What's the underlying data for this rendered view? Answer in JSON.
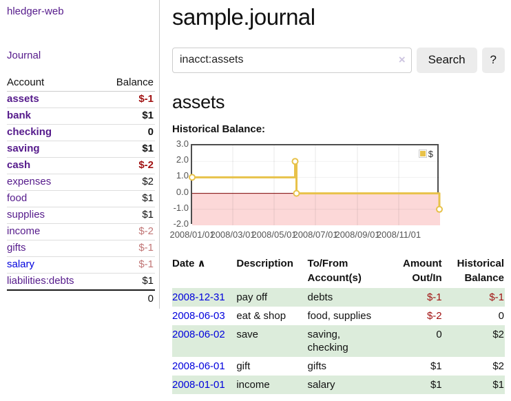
{
  "app": {
    "title": "hledger-web",
    "nav_journal": "Journal"
  },
  "sidebar": {
    "headers": {
      "account": "Account",
      "balance": "Balance"
    },
    "accounts": [
      {
        "name": "assets",
        "depth": 1,
        "bold": true,
        "balance": "$-1",
        "balance_style": "negative"
      },
      {
        "name": "bank",
        "depth": 2,
        "bold": true,
        "balance": "$1",
        "balance_style": "normal"
      },
      {
        "name": "checking",
        "depth": 3,
        "bold": true,
        "balance": "0",
        "balance_style": "normal"
      },
      {
        "name": "saving",
        "depth": 3,
        "bold": true,
        "balance": "$1",
        "balance_style": "normal"
      },
      {
        "name": "cash",
        "depth": 2,
        "bold": true,
        "balance": "$-2",
        "balance_style": "negative"
      },
      {
        "name": "expenses",
        "depth": 1,
        "bold": false,
        "balance": "$2",
        "balance_style": "normal"
      },
      {
        "name": "food",
        "depth": 2,
        "bold": false,
        "balance": "$1",
        "balance_style": "normal"
      },
      {
        "name": "supplies",
        "depth": 2,
        "bold": false,
        "balance": "$1",
        "balance_style": "normal"
      },
      {
        "name": "income",
        "depth": 1,
        "bold": false,
        "balance": "$-2",
        "balance_style": "negative-muted"
      },
      {
        "name": "gifts",
        "depth": 2,
        "bold": false,
        "balance": "$-1",
        "balance_style": "negative-muted"
      },
      {
        "name": "salary",
        "depth": 2,
        "bold": false,
        "balance": "$-1",
        "balance_style": "negative-muted",
        "link_blue": true
      },
      {
        "name": "liabilities:debts",
        "depth": 1,
        "bold": false,
        "balance": "$1",
        "balance_style": "normal"
      }
    ],
    "total": "0"
  },
  "main": {
    "title": "sample.journal",
    "search": {
      "value": "inacct:assets",
      "clear_icon": "×",
      "search_button": "Search",
      "help_button": "?"
    },
    "account_heading": "assets",
    "chart_label": "Historical Balance:"
  },
  "chart_data": {
    "type": "line",
    "subtype": "step",
    "title": "Historical Balance:",
    "legend": [
      {
        "name": "$",
        "color": "#e8c24a"
      }
    ],
    "legend_position": "top-right",
    "grid": true,
    "ylim": [
      -2.0,
      3.0
    ],
    "ytick_labels": [
      "3.0",
      "2.0",
      "1.0",
      "0.0",
      "-1.0",
      "-2.0"
    ],
    "ytick_values": [
      3,
      2,
      1,
      0,
      -1,
      -2
    ],
    "x_domain": [
      "2008-01-01",
      "2009-01-01"
    ],
    "xtick_labels": [
      "2008/01/01",
      "2008/03/01",
      "2008/05/01",
      "2008/07/01",
      "2008/09/01",
      "2008/11/01"
    ],
    "series": [
      {
        "name": "$",
        "vertices": [
          [
            "2008-01-01",
            1
          ],
          [
            "2008-06-01",
            1
          ],
          [
            "2008-06-01",
            2
          ],
          [
            "2008-06-03",
            2
          ],
          [
            "2008-06-03",
            0
          ],
          [
            "2008-12-31",
            0
          ],
          [
            "2008-12-31",
            -1
          ]
        ],
        "markers": [
          [
            "2008-01-01",
            1
          ],
          [
            "2008-06-01",
            2
          ],
          [
            "2008-06-03",
            0
          ],
          [
            "2008-12-31",
            -1
          ]
        ]
      }
    ]
  },
  "register": {
    "columns": [
      {
        "label": "Date",
        "align": "left",
        "sorted": true
      },
      {
        "label": "Description",
        "align": "left"
      },
      {
        "label": "To/From Account(s)",
        "align": "left"
      },
      {
        "label": "Amount Out/In",
        "align": "right"
      },
      {
        "label": "Historical Balance",
        "align": "right"
      }
    ],
    "sort_icon": "∧",
    "rows": [
      {
        "date": "2008-12-31",
        "description": "pay off",
        "accounts": "debts",
        "amount": "$-1",
        "amount_negative": true,
        "balance": "$-1",
        "balance_negative": true,
        "highlight": true
      },
      {
        "date": "2008-06-03",
        "description": "eat & shop",
        "accounts": "food, supplies",
        "amount": "$-2",
        "amount_negative": true,
        "balance": "0",
        "balance_negative": false,
        "highlight": false
      },
      {
        "date": "2008-06-02",
        "description": "save",
        "accounts": "saving, checking",
        "amount": "0",
        "amount_negative": false,
        "balance": "$2",
        "balance_negative": false,
        "highlight": true
      },
      {
        "date": "2008-06-01",
        "description": "gift",
        "accounts": "gifts",
        "amount": "$1",
        "amount_negative": false,
        "balance": "$2",
        "balance_negative": false,
        "highlight": false
      },
      {
        "date": "2008-01-01",
        "description": "income",
        "accounts": "salary",
        "amount": "$1",
        "amount_negative": false,
        "balance": "$1",
        "balance_negative": false,
        "highlight": true
      }
    ]
  },
  "colors": {
    "accent_purple": "#551a8b",
    "link_blue": "#0000dd",
    "negative": "#a11212",
    "negative_muted": "#c17676",
    "row_green": "#dcecdb",
    "chart_line": "#e8c24a",
    "chart_negative_fill": "#fcd8d8",
    "zero_line": "#7a0000"
  }
}
